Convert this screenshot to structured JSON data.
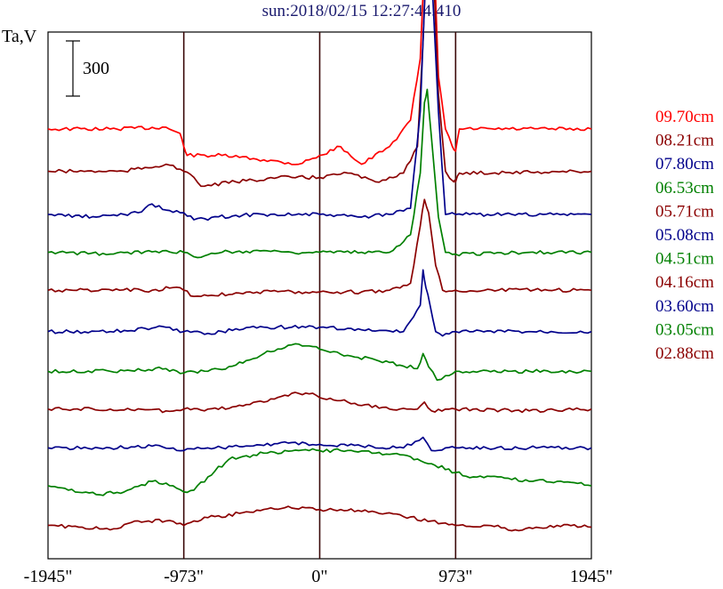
{
  "header": {
    "title": "sun:2018/02/15 12:27:44.410",
    "ylabel": "Ta,V",
    "scale_bar_label": "300"
  },
  "chart_data": {
    "type": "line",
    "title": "sun:2018/02/15 12:27:44.410",
    "ylabel": "Ta,V",
    "xlabel": "",
    "x_ticks": [
      "-1945\"",
      "-973\"",
      "0\"",
      "973\"",
      "1945\""
    ],
    "x_tick_values": [
      -1945,
      -973,
      0,
      973,
      1945
    ],
    "xlim": [
      -1945,
      1945
    ],
    "vertical_lines": [
      -973,
      0,
      973
    ],
    "scale_bar": {
      "value": 300,
      "units": "Ta,V"
    },
    "legend_placement": "right",
    "series": [
      {
        "name": "09.70cm",
        "color": "#ff0000",
        "baseline": 0,
        "points": [
          [
            -1945,
            0
          ],
          [
            -1500,
            0
          ],
          [
            -1100,
            2
          ],
          [
            -1000,
            -5
          ],
          [
            -973,
            -20
          ],
          [
            -950,
            -30
          ],
          [
            -700,
            -30
          ],
          [
            -400,
            -35
          ],
          [
            -150,
            -40
          ],
          [
            0,
            -30
          ],
          [
            150,
            -20
          ],
          [
            300,
            -40
          ],
          [
            500,
            -20
          ],
          [
            650,
            10
          ],
          [
            720,
            80
          ],
          [
            760,
            230
          ],
          [
            790,
            280
          ],
          [
            810,
            230
          ],
          [
            850,
            60
          ],
          [
            900,
            0
          ],
          [
            950,
            -20
          ],
          [
            973,
            -25
          ],
          [
            1000,
            0
          ],
          [
            1945,
            0
          ]
        ]
      },
      {
        "name": "08.21cm",
        "color": "#8b0000",
        "baseline": -48,
        "points": [
          [
            -1945,
            -48
          ],
          [
            -1400,
            -48
          ],
          [
            -1100,
            -40
          ],
          [
            -973,
            -48
          ],
          [
            -900,
            -55
          ],
          [
            -850,
            -65
          ],
          [
            -600,
            -60
          ],
          [
            -300,
            -55
          ],
          [
            0,
            -55
          ],
          [
            200,
            -50
          ],
          [
            400,
            -60
          ],
          [
            600,
            -50
          ],
          [
            700,
            -20
          ],
          [
            740,
            100
          ],
          [
            770,
            220
          ],
          [
            790,
            250
          ],
          [
            810,
            200
          ],
          [
            850,
            40
          ],
          [
            900,
            -48
          ],
          [
            960,
            -60
          ],
          [
            973,
            -60
          ],
          [
            1000,
            -50
          ],
          [
            1945,
            -48
          ]
        ]
      },
      {
        "name": "07.80cm",
        "color": "#00008b",
        "baseline": -97,
        "points": [
          [
            -1945,
            -97
          ],
          [
            -1600,
            -100
          ],
          [
            -1300,
            -95
          ],
          [
            -1200,
            -85
          ],
          [
            -1100,
            -92
          ],
          [
            -973,
            -95
          ],
          [
            -900,
            -103
          ],
          [
            -600,
            -98
          ],
          [
            -400,
            -97
          ],
          [
            0,
            -97
          ],
          [
            300,
            -100
          ],
          [
            500,
            -97
          ],
          [
            650,
            -90
          ],
          [
            720,
            20
          ],
          [
            760,
            180
          ],
          [
            780,
            220
          ],
          [
            800,
            180
          ],
          [
            850,
            20
          ],
          [
            900,
            -97
          ],
          [
            973,
            -97
          ],
          [
            1200,
            -97
          ],
          [
            1600,
            -97
          ],
          [
            1945,
            -97
          ]
        ]
      },
      {
        "name": "06.53cm",
        "color": "#008000",
        "baseline": -140,
        "points": [
          [
            -1945,
            -140
          ],
          [
            -1500,
            -142
          ],
          [
            -1100,
            -138
          ],
          [
            -973,
            -140
          ],
          [
            -900,
            -145
          ],
          [
            -700,
            -140
          ],
          [
            -400,
            -138
          ],
          [
            -200,
            -140
          ],
          [
            0,
            -140
          ],
          [
            300,
            -140
          ],
          [
            500,
            -140
          ],
          [
            650,
            -120
          ],
          [
            720,
            -50
          ],
          [
            750,
            30
          ],
          [
            770,
            45
          ],
          [
            800,
            -10
          ],
          [
            850,
            -100
          ],
          [
            900,
            -140
          ],
          [
            973,
            -142
          ],
          [
            1500,
            -140
          ],
          [
            1945,
            -140
          ]
        ]
      },
      {
        "name": "05.71cm",
        "color": "#8b0000",
        "baseline": -183,
        "points": [
          [
            -1945,
            -183
          ],
          [
            -1200,
            -183
          ],
          [
            -1050,
            -180
          ],
          [
            -973,
            -183
          ],
          [
            -900,
            -190
          ],
          [
            -500,
            -185
          ],
          [
            0,
            -185
          ],
          [
            300,
            -185
          ],
          [
            500,
            -183
          ],
          [
            650,
            -175
          ],
          [
            720,
            -110
          ],
          [
            750,
            -80
          ],
          [
            780,
            -95
          ],
          [
            830,
            -155
          ],
          [
            880,
            -183
          ],
          [
            973,
            -183
          ],
          [
            1945,
            -183
          ]
        ]
      },
      {
        "name": "05.08cm",
        "color": "#00008b",
        "baseline": -230,
        "points": [
          [
            -1945,
            -230
          ],
          [
            -1500,
            -230
          ],
          [
            -1100,
            -225
          ],
          [
            -973,
            -230
          ],
          [
            -800,
            -232
          ],
          [
            -500,
            -225
          ],
          [
            -200,
            -225
          ],
          [
            0,
            -225
          ],
          [
            300,
            -228
          ],
          [
            600,
            -230
          ],
          [
            720,
            -200
          ],
          [
            740,
            -160
          ],
          [
            760,
            -180
          ],
          [
            790,
            -200
          ],
          [
            830,
            -230
          ],
          [
            880,
            -235
          ],
          [
            973,
            -230
          ],
          [
            1500,
            -230
          ],
          [
            1945,
            -230
          ]
        ]
      },
      {
        "name": "04.51cm",
        "color": "#008000",
        "baseline": -275,
        "points": [
          [
            -1945,
            -275
          ],
          [
            -1500,
            -275
          ],
          [
            -1100,
            -272
          ],
          [
            -973,
            -277
          ],
          [
            -800,
            -275
          ],
          [
            -600,
            -268
          ],
          [
            -400,
            -255
          ],
          [
            -200,
            -245
          ],
          [
            -50,
            -247
          ],
          [
            0,
            -250
          ],
          [
            200,
            -257
          ],
          [
            500,
            -265
          ],
          [
            700,
            -272
          ],
          [
            740,
            -255
          ],
          [
            780,
            -270
          ],
          [
            840,
            -285
          ],
          [
            900,
            -280
          ],
          [
            973,
            -275
          ],
          [
            1500,
            -275
          ],
          [
            1945,
            -275
          ]
        ]
      },
      {
        "name": "04.16cm",
        "color": "#8b0000",
        "baseline": -318,
        "points": [
          [
            -1945,
            -318
          ],
          [
            -1500,
            -318
          ],
          [
            -1100,
            -320
          ],
          [
            -973,
            -318
          ],
          [
            -800,
            -318
          ],
          [
            -600,
            -315
          ],
          [
            -400,
            -310
          ],
          [
            -200,
            -300
          ],
          [
            -50,
            -300
          ],
          [
            0,
            -305
          ],
          [
            200,
            -310
          ],
          [
            500,
            -318
          ],
          [
            700,
            -318
          ],
          [
            750,
            -310
          ],
          [
            800,
            -320
          ],
          [
            900,
            -318
          ],
          [
            973,
            -318
          ],
          [
            1500,
            -320
          ],
          [
            1945,
            -318
          ]
        ]
      },
      {
        "name": "03.60cm",
        "color": "#00008b",
        "baseline": -362,
        "points": [
          [
            -1945,
            -362
          ],
          [
            -1500,
            -362
          ],
          [
            -1200,
            -360
          ],
          [
            -973,
            -365
          ],
          [
            -800,
            -362
          ],
          [
            -500,
            -360
          ],
          [
            -200,
            -356
          ],
          [
            0,
            -358
          ],
          [
            300,
            -360
          ],
          [
            600,
            -362
          ],
          [
            740,
            -350
          ],
          [
            800,
            -365
          ],
          [
            900,
            -362
          ],
          [
            973,
            -362
          ],
          [
            1500,
            -362
          ],
          [
            1945,
            -362
          ]
        ]
      },
      {
        "name": "03.05cm",
        "color": "#008000",
        "baseline": -410,
        "points": [
          [
            -1945,
            -405
          ],
          [
            -1800,
            -410
          ],
          [
            -1600,
            -415
          ],
          [
            -1400,
            -412
          ],
          [
            -1200,
            -400
          ],
          [
            -1050,
            -405
          ],
          [
            -973,
            -412
          ],
          [
            -900,
            -410
          ],
          [
            -800,
            -395
          ],
          [
            -650,
            -375
          ],
          [
            -400,
            -368
          ],
          [
            -150,
            -365
          ],
          [
            0,
            -365
          ],
          [
            150,
            -365
          ],
          [
            400,
            -368
          ],
          [
            600,
            -370
          ],
          [
            800,
            -380
          ],
          [
            973,
            -390
          ],
          [
            1100,
            -395
          ],
          [
            1300,
            -395
          ],
          [
            1500,
            -400
          ],
          [
            1700,
            -400
          ],
          [
            1945,
            -405
          ]
        ]
      },
      {
        "name": "02.88cm",
        "color": "#8b0000",
        "baseline": -450,
        "points": [
          [
            -1945,
            -450
          ],
          [
            -1700,
            -452
          ],
          [
            -1500,
            -455
          ],
          [
            -1300,
            -445
          ],
          [
            -1100,
            -445
          ],
          [
            -973,
            -450
          ],
          [
            -900,
            -445
          ],
          [
            -750,
            -440
          ],
          [
            -500,
            -435
          ],
          [
            -250,
            -430
          ],
          [
            -100,
            -430
          ],
          [
            0,
            -432
          ],
          [
            150,
            -432
          ],
          [
            400,
            -435
          ],
          [
            600,
            -440
          ],
          [
            800,
            -445
          ],
          [
            973,
            -450
          ],
          [
            1200,
            -450
          ],
          [
            1400,
            -455
          ],
          [
            1700,
            -450
          ],
          [
            1945,
            -452
          ]
        ]
      }
    ]
  }
}
